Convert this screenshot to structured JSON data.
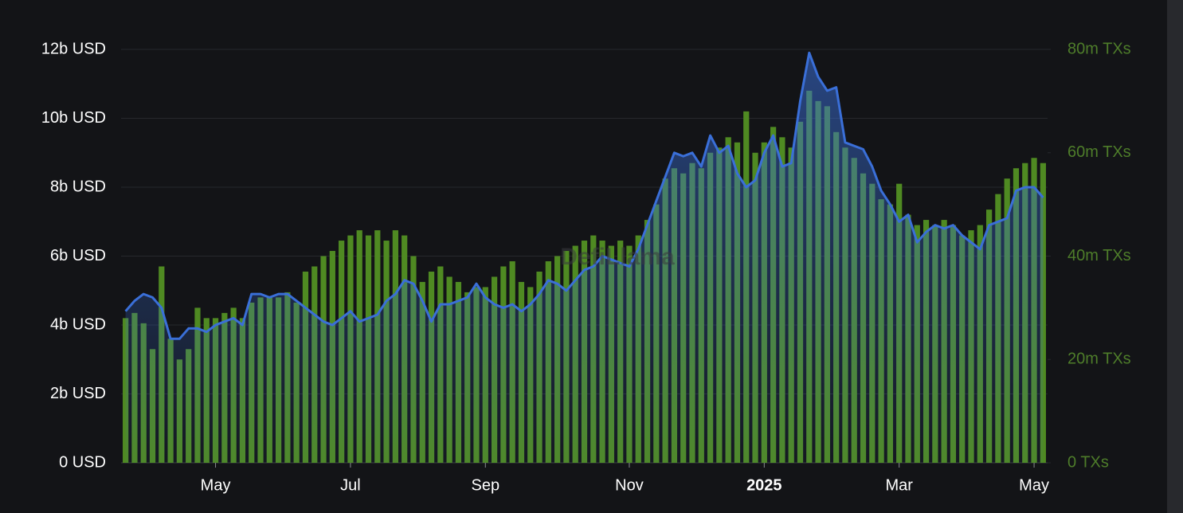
{
  "chart_data": {
    "type": "combo",
    "watermark": "DefiLlama",
    "categories": [
      null,
      null,
      null,
      null,
      null,
      null,
      null,
      null,
      null,
      null,
      "May",
      null,
      null,
      null,
      null,
      null,
      null,
      null,
      null,
      null,
      null,
      null,
      null,
      null,
      null,
      "Jul",
      null,
      null,
      null,
      null,
      null,
      null,
      null,
      null,
      null,
      null,
      null,
      null,
      null,
      null,
      "Sep",
      null,
      null,
      null,
      null,
      null,
      null,
      null,
      null,
      null,
      null,
      null,
      null,
      null,
      null,
      null,
      "Nov",
      null,
      null,
      null,
      null,
      null,
      null,
      null,
      null,
      null,
      null,
      null,
      null,
      null,
      null,
      "2025",
      null,
      null,
      null,
      null,
      null,
      null,
      null,
      null,
      null,
      null,
      null,
      null,
      null,
      null,
      "Mar",
      null,
      null,
      null,
      null,
      null,
      null,
      null,
      null,
      null,
      null,
      null,
      null,
      null,
      null,
      "May",
      null
    ],
    "ylim": [
      0,
      12000000000.0
    ],
    "yticks": [
      {
        "value": 0,
        "label": "0 USD"
      },
      {
        "value": 2000000000.0,
        "label": "2b USD"
      },
      {
        "value": 4000000000.0,
        "label": "4b USD"
      },
      {
        "value": 6000000000.0,
        "label": "6b USD"
      },
      {
        "value": 8000000000.0,
        "label": "8b USD"
      },
      {
        "value": 10000000000.0,
        "label": "10b USD"
      },
      {
        "value": 12000000000.0,
        "label": "12b USD"
      }
    ],
    "y2lim": [
      0,
      80000000.0
    ],
    "y2ticks": [
      {
        "value": 0,
        "label": "0 TXs"
      },
      {
        "value": 20000000.0,
        "label": "20m TXs"
      },
      {
        "value": 40000000.0,
        "label": "40m TXs"
      },
      {
        "value": 60000000.0,
        "label": "60m TXs"
      },
      {
        "value": 80000000.0,
        "label": "80m TXs"
      }
    ],
    "grid": true,
    "series": [
      {
        "type": "bar",
        "axis": "y2",
        "color": "#4f8a22",
        "values": [
          28000000.0,
          29000000.0,
          27000000.0,
          22000000.0,
          38000000.0,
          24000000.0,
          20000000.0,
          22000000.0,
          30000000.0,
          28000000.0,
          28000000.0,
          29000000.0,
          30000000.0,
          28000000.0,
          31000000.0,
          32000000.0,
          32000000.0,
          32000000.0,
          33000000.0,
          31000000.0,
          37000000.0,
          38000000.0,
          40000000.0,
          41000000.0,
          43000000.0,
          44000000.0,
          45000000.0,
          44000000.0,
          45000000.0,
          43000000.0,
          45000000.0,
          44000000.0,
          40000000.0,
          35000000.0,
          37000000.0,
          38000000.0,
          36000000.0,
          35000000.0,
          33000000.0,
          34000000.0,
          34000000.0,
          36000000.0,
          38000000.0,
          39000000.0,
          35000000.0,
          34000000.0,
          37000000.0,
          39000000.0,
          40000000.0,
          41000000.0,
          42000000.0,
          43000000.0,
          44000000.0,
          43000000.0,
          42000000.0,
          43000000.0,
          42000000.0,
          44000000.0,
          47000000.0,
          50000000.0,
          55000000.0,
          57000000.0,
          56000000.0,
          58000000.0,
          57000000.0,
          60000000.0,
          61000000.0,
          63000000.0,
          62000000.0,
          68000000.0,
          60000000.0,
          62000000.0,
          65000000.0,
          63000000.0,
          61000000.0,
          66000000.0,
          72000000.0,
          70000000.0,
          69000000.0,
          64000000.0,
          61000000.0,
          59000000.0,
          56000000.0,
          54000000.0,
          51000000.0,
          50000000.0,
          54000000.0,
          48000000.0,
          46000000.0,
          47000000.0,
          46000000.0,
          47000000.0,
          46000000.0,
          44000000.0,
          45000000.0,
          46000000.0,
          49000000.0,
          52000000.0,
          55000000.0,
          57000000.0,
          58000000.0,
          59000000.0,
          58000000.0
        ]
      },
      {
        "type": "area",
        "color": "#3a6fd8",
        "values": [
          4400000000.0,
          4700000000.0,
          4900000000.0,
          4800000000.0,
          4500000000.0,
          3600000000.0,
          3600000000.0,
          3900000000.0,
          3900000000.0,
          3800000000.0,
          4000000000.0,
          4100000000.0,
          4200000000.0,
          4000000000.0,
          4900000000.0,
          4900000000.0,
          4800000000.0,
          4900000000.0,
          4900000000.0,
          4700000000.0,
          4500000000.0,
          4300000000.0,
          4100000000.0,
          4000000000.0,
          4200000000.0,
          4400000000.0,
          4100000000.0,
          4200000000.0,
          4300000000.0,
          4700000000.0,
          4900000000.0,
          5300000000.0,
          5200000000.0,
          4700000000.0,
          4100000000.0,
          4600000000.0,
          4600000000.0,
          4700000000.0,
          4800000000.0,
          5200000000.0,
          4800000000.0,
          4600000000.0,
          4500000000.0,
          4600000000.0,
          4400000000.0,
          4600000000.0,
          4900000000.0,
          5300000000.0,
          5200000000.0,
          5000000000.0,
          5300000000.0,
          5600000000.0,
          5700000000.0,
          6000000000.0,
          5900000000.0,
          5800000000.0,
          5700000000.0,
          6200000000.0,
          6900000000.0,
          7600000000.0,
          8300000000.0,
          9000000000.0,
          8900000000.0,
          9000000000.0,
          8600000000.0,
          9500000000.0,
          9000000000.0,
          9200000000.0,
          8400000000.0,
          8000000000.0,
          8200000000.0,
          9000000000.0,
          9500000000.0,
          8600000000.0,
          8700000000.0,
          10500000000.0,
          11900000000.0,
          11200000000.0,
          10800000000.0,
          10900000000.0,
          9300000000.0,
          9200000000.0,
          9100000000.0,
          8600000000.0,
          7900000000.0,
          7500000000.0,
          7000000000.0,
          7200000000.0,
          6400000000.0,
          6700000000.0,
          6900000000.0,
          6800000000.0,
          6900000000.0,
          6600000000.0,
          6400000000.0,
          6200000000.0,
          6900000000.0,
          7000000000.0,
          7100000000.0,
          7900000000.0,
          8000000000.0,
          8000000000.0,
          7700000000.0
        ]
      }
    ]
  }
}
